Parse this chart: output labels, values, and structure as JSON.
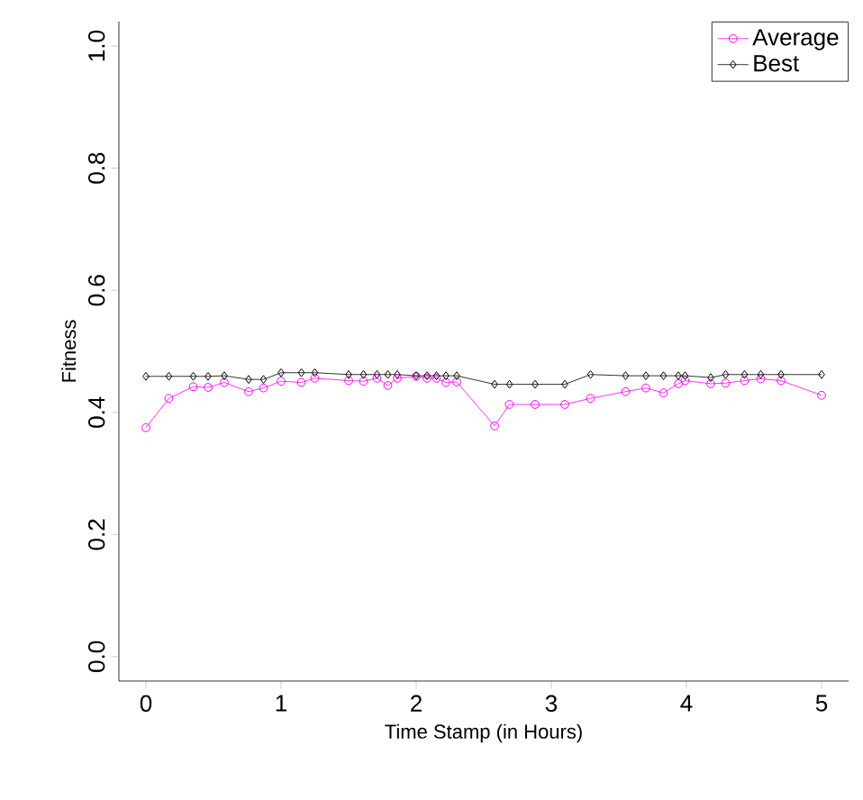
{
  "chart_data": {
    "type": "line",
    "xlabel": "Time Stamp (in Hours)",
    "ylabel": "Fitness",
    "x": [
      0,
      0.17,
      0.35,
      0.46,
      0.58,
      0.76,
      0.87,
      1.0,
      1.15,
      1.25,
      1.5,
      1.61,
      1.71,
      1.79,
      1.86,
      2.0,
      2.08,
      2.15,
      2.22,
      2.3,
      2.58,
      2.69,
      2.88,
      3.1,
      3.29,
      3.55,
      3.7,
      3.83,
      3.94,
      3.99,
      4.18,
      4.29,
      4.43,
      4.55,
      4.7,
      5.0
    ],
    "series": [
      {
        "name": "Average",
        "color": "#ff00ff",
        "marker": "circle",
        "values": [
          0.375,
          0.423,
          0.442,
          0.441,
          0.449,
          0.434,
          0.44,
          0.451,
          0.449,
          0.456,
          0.452,
          0.451,
          0.456,
          0.444,
          0.456,
          0.459,
          0.456,
          0.456,
          0.449,
          0.45,
          0.378,
          0.413,
          0.413,
          0.413,
          0.423,
          0.434,
          0.44,
          0.432,
          0.447,
          0.452,
          0.447,
          0.448,
          0.452,
          0.455,
          0.452,
          0.428
        ]
      },
      {
        "name": "Best",
        "color": "#000000",
        "marker": "diamond",
        "values": [
          0.459,
          0.459,
          0.459,
          0.459,
          0.46,
          0.454,
          0.454,
          0.465,
          0.465,
          0.465,
          0.462,
          0.462,
          0.462,
          0.462,
          0.462,
          0.46,
          0.46,
          0.46,
          0.46,
          0.46,
          0.446,
          0.446,
          0.446,
          0.446,
          0.462,
          0.46,
          0.46,
          0.46,
          0.46,
          0.46,
          0.457,
          0.462,
          0.462,
          0.462,
          0.462,
          0.462
        ]
      }
    ],
    "xlim": [
      -0.2,
      5.2
    ],
    "ylim": [
      -0.04,
      1.04
    ],
    "xticks": [
      0,
      1,
      2,
      3,
      4,
      5
    ],
    "yticks": [
      {
        "value": 0,
        "label": "0.0"
      },
      {
        "value": 0.2,
        "label": "0.2"
      },
      {
        "value": 0.4,
        "label": "0.4"
      },
      {
        "value": 0.6,
        "label": "0.6"
      },
      {
        "value": 0.8,
        "label": "0.8"
      },
      {
        "value": 1,
        "label": "1.0"
      }
    ],
    "legend": "top right",
    "grid": false,
    "line_style": "solid"
  }
}
